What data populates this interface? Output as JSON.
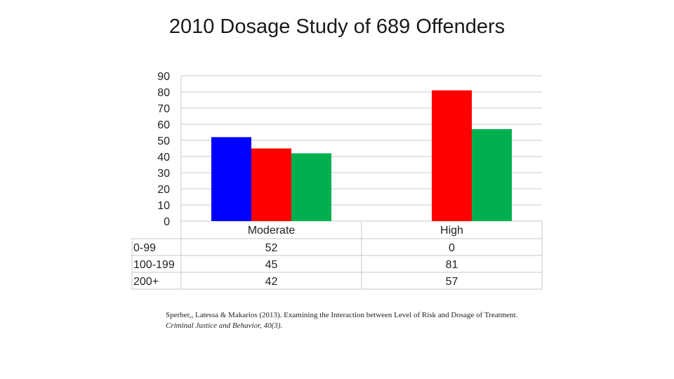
{
  "chart_data": {
    "type": "bar",
    "title": "2010 Dosage Study of 689 Offenders",
    "categories": [
      "Moderate",
      "High"
    ],
    "series": [
      {
        "name": "0-99",
        "color": "#0000ff",
        "values": [
          52,
          0
        ]
      },
      {
        "name": "100-199",
        "color": "#ff0000",
        "values": [
          45,
          81
        ]
      },
      {
        "name": "200+",
        "color": "#00b050",
        "values": [
          42,
          57
        ]
      }
    ],
    "ylim": [
      0,
      90
    ],
    "yticks": [
      0,
      10,
      20,
      30,
      40,
      50,
      60,
      70,
      80,
      90
    ],
    "grid": true,
    "xlabel": "",
    "ylabel": "",
    "data_table": {
      "rows": [
        {
          "label": "0-99",
          "values": [
            "52",
            "0"
          ]
        },
        {
          "label": "100-199",
          "values": [
            "45",
            "81"
          ]
        },
        {
          "label": "200+",
          "values": [
            "42",
            "57"
          ]
        }
      ]
    }
  },
  "citation": {
    "text": "Sperber,, Latessa & Makarios (2013). Examining the Interaction between Level of Risk and Dosage of Treatment.",
    "journal": "Criminal Justice and Behavior, 40(3)."
  }
}
